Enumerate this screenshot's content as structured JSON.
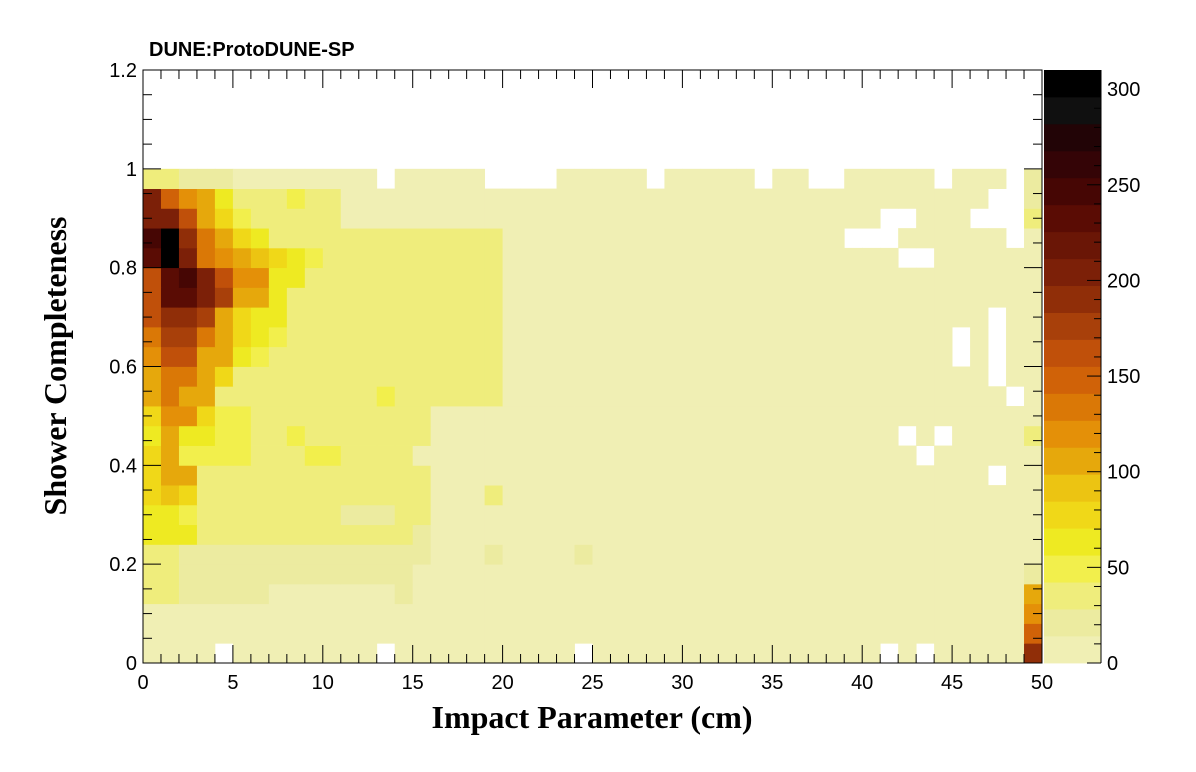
{
  "chart_data": {
    "type": "heatmap",
    "title": "DUNE:ProtoDUNE-SP",
    "xlabel": "Impact Parameter (cm)",
    "ylabel": "Shower Completeness",
    "xlim": [
      0,
      50
    ],
    "ylim": [
      0,
      1.2
    ],
    "x_bin_width": 1,
    "y_bin_width": 0.04,
    "x_ticks": [
      "0",
      "5",
      "10",
      "15",
      "20",
      "25",
      "30",
      "35",
      "40",
      "45",
      "50"
    ],
    "y_ticks": [
      "0",
      "0.2",
      "0.4",
      "0.6",
      "0.8",
      "1",
      "1.2"
    ],
    "colorbar": {
      "min": 0,
      "max": 310,
      "ticks": [
        "0",
        "50",
        "100",
        "150",
        "200",
        "250",
        "300"
      ],
      "palette": [
        "#f0efb4",
        "#eceba0",
        "#efed7c",
        "#f2ef4c",
        "#eeea22",
        "#f0d818",
        "#ecc412",
        "#e6a80c",
        "#e49008",
        "#da7806",
        "#d06208",
        "#c0500a",
        "#a8400a",
        "#902e08",
        "#7c2008",
        "#6a1606",
        "#5a0c04",
        "#460604",
        "#340406",
        "#220406",
        "#101010",
        "#000000"
      ]
    },
    "note_rows": "rows ordered from y=0 (bottom) upward; each row lists 50 counts for x bins 0..49; -1 = empty bin",
    "rows": [
      [
        2,
        2,
        2,
        2,
        -1,
        2,
        2,
        2,
        2,
        2,
        2,
        2,
        2,
        -1,
        2,
        2,
        2,
        2,
        2,
        2,
        2,
        2,
        2,
        2,
        -1,
        2,
        2,
        2,
        2,
        2,
        2,
        2,
        2,
        2,
        2,
        2,
        2,
        2,
        2,
        2,
        2,
        -1,
        2,
        -1,
        2,
        2,
        2,
        2,
        2,
        190
      ],
      [
        2,
        2,
        2,
        2,
        2,
        2,
        2,
        2,
        2,
        2,
        2,
        2,
        2,
        2,
        2,
        2,
        2,
        2,
        2,
        2,
        2,
        2,
        2,
        2,
        2,
        2,
        2,
        2,
        2,
        2,
        2,
        2,
        2,
        2,
        2,
        2,
        2,
        2,
        2,
        2,
        2,
        2,
        2,
        2,
        2,
        2,
        2,
        2,
        2,
        150
      ],
      [
        2,
        2,
        2,
        2,
        2,
        2,
        2,
        2,
        2,
        2,
        2,
        2,
        2,
        2,
        2,
        2,
        2,
        2,
        2,
        2,
        2,
        2,
        2,
        2,
        2,
        2,
        2,
        2,
        2,
        2,
        2,
        2,
        2,
        2,
        2,
        2,
        2,
        2,
        2,
        2,
        2,
        2,
        2,
        2,
        2,
        2,
        2,
        2,
        2,
        120
      ],
      [
        40,
        30,
        20,
        20,
        20,
        20,
        20,
        2,
        2,
        2,
        2,
        2,
        2,
        2,
        15,
        2,
        2,
        2,
        2,
        2,
        2,
        2,
        2,
        2,
        2,
        2,
        2,
        2,
        2,
        2,
        2,
        2,
        2,
        2,
        2,
        2,
        2,
        2,
        2,
        2,
        2,
        2,
        2,
        2,
        2,
        2,
        2,
        2,
        2,
        100
      ],
      [
        40,
        30,
        20,
        20,
        20,
        20,
        20,
        20,
        20,
        20,
        20,
        20,
        20,
        20,
        20,
        10,
        10,
        10,
        10,
        10,
        10,
        10,
        10,
        10,
        10,
        2,
        2,
        2,
        2,
        2,
        2,
        2,
        2,
        2,
        2,
        2,
        2,
        2,
        2,
        2,
        2,
        2,
        2,
        2,
        2,
        2,
        2,
        2,
        2,
        20
      ],
      [
        30,
        30,
        20,
        20,
        15,
        15,
        15,
        15,
        15,
        15,
        15,
        15,
        15,
        15,
        15,
        15,
        10,
        10,
        10,
        20,
        10,
        10,
        10,
        10,
        20,
        2,
        2,
        2,
        2,
        2,
        2,
        2,
        2,
        2,
        2,
        2,
        2,
        2,
        2,
        2,
        2,
        2,
        2,
        2,
        2,
        2,
        2,
        2,
        2,
        5
      ],
      [
        60,
        60,
        60,
        30,
        30,
        30,
        30,
        30,
        30,
        30,
        30,
        30,
        30,
        30,
        30,
        15,
        10,
        10,
        10,
        10,
        10,
        10,
        10,
        10,
        10,
        2,
        2,
        2,
        2,
        2,
        2,
        2,
        2,
        2,
        2,
        2,
        2,
        2,
        2,
        2,
        2,
        2,
        2,
        2,
        2,
        2,
        2,
        2,
        2,
        5
      ],
      [
        70,
        70,
        55,
        30,
        30,
        30,
        30,
        30,
        30,
        30,
        30,
        15,
        15,
        15,
        30,
        30,
        10,
        10,
        10,
        10,
        10,
        10,
        10,
        10,
        10,
        2,
        2,
        2,
        2,
        2,
        2,
        2,
        2,
        2,
        2,
        2,
        2,
        2,
        2,
        2,
        2,
        2,
        2,
        2,
        2,
        2,
        2,
        2,
        2,
        5
      ],
      [
        80,
        95,
        80,
        30,
        30,
        30,
        30,
        30,
        30,
        30,
        30,
        30,
        30,
        30,
        30,
        30,
        10,
        10,
        10,
        30,
        10,
        10,
        10,
        10,
        10,
        2,
        2,
        2,
        2,
        2,
        2,
        2,
        2,
        2,
        2,
        2,
        2,
        2,
        2,
        2,
        2,
        2,
        2,
        2,
        2,
        2,
        2,
        2,
        2,
        5
      ],
      [
        80,
        100,
        100,
        40,
        40,
        40,
        30,
        30,
        30,
        30,
        40,
        30,
        30,
        30,
        30,
        30,
        10,
        10,
        10,
        10,
        10,
        10,
        10,
        10,
        10,
        2,
        2,
        2,
        2,
        2,
        2,
        2,
        2,
        2,
        2,
        2,
        2,
        2,
        2,
        2,
        2,
        2,
        2,
        2,
        2,
        2,
        2,
        -1,
        2,
        5
      ],
      [
        80,
        100,
        55,
        55,
        55,
        55,
        40,
        40,
        40,
        55,
        55,
        30,
        30,
        30,
        30,
        10,
        10,
        10,
        10,
        10,
        10,
        10,
        10,
        10,
        10,
        2,
        2,
        2,
        2,
        2,
        2,
        2,
        2,
        2,
        2,
        2,
        2,
        2,
        2,
        2,
        2,
        2,
        2,
        -1,
        2,
        2,
        2,
        2,
        2,
        5
      ],
      [
        70,
        100,
        70,
        60,
        55,
        55,
        40,
        40,
        55,
        40,
        40,
        30,
        30,
        30,
        30,
        30,
        10,
        10,
        10,
        10,
        10,
        10,
        10,
        10,
        10,
        2,
        2,
        2,
        2,
        2,
        2,
        2,
        2,
        2,
        2,
        2,
        2,
        2,
        2,
        2,
        2,
        2,
        -1,
        2,
        -1,
        2,
        2,
        2,
        2,
        40
      ],
      [
        80,
        120,
        120,
        80,
        55,
        55,
        40,
        40,
        40,
        30,
        30,
        30,
        30,
        30,
        30,
        30,
        10,
        10,
        10,
        10,
        10,
        10,
        10,
        10,
        10,
        2,
        2,
        2,
        2,
        2,
        2,
        2,
        2,
        2,
        2,
        2,
        2,
        2,
        2,
        2,
        2,
        2,
        2,
        2,
        2,
        2,
        2,
        2,
        2,
        5
      ],
      [
        100,
        130,
        110,
        100,
        40,
        40,
        40,
        30,
        40,
        30,
        30,
        30,
        30,
        55,
        30,
        30,
        40,
        30,
        30,
        30,
        10,
        10,
        10,
        10,
        10,
        2,
        2,
        2,
        2,
        2,
        2,
        2,
        2,
        2,
        2,
        2,
        2,
        2,
        2,
        2,
        2,
        2,
        2,
        2,
        2,
        2,
        2,
        2,
        -1,
        5
      ],
      [
        110,
        140,
        140,
        100,
        80,
        40,
        40,
        40,
        40,
        30,
        30,
        30,
        30,
        30,
        30,
        30,
        30,
        30,
        30,
        30,
        10,
        10,
        10,
        10,
        10,
        2,
        2,
        2,
        2,
        2,
        2,
        2,
        2,
        2,
        2,
        2,
        2,
        2,
        2,
        2,
        2,
        2,
        2,
        2,
        2,
        2,
        2,
        -1,
        2,
        5
      ],
      [
        120,
        160,
        160,
        110,
        100,
        60,
        50,
        40,
        40,
        40,
        30,
        30,
        30,
        30,
        30,
        30,
        30,
        30,
        30,
        30,
        10,
        10,
        10,
        10,
        10,
        2,
        2,
        2,
        2,
        2,
        2,
        2,
        2,
        2,
        2,
        2,
        2,
        2,
        2,
        2,
        2,
        2,
        2,
        2,
        2,
        -1,
        2,
        -1,
        2,
        5
      ],
      [
        130,
        170,
        180,
        140,
        100,
        80,
        60,
        50,
        40,
        40,
        40,
        30,
        30,
        30,
        30,
        30,
        30,
        30,
        30,
        30,
        10,
        10,
        10,
        10,
        10,
        2,
        2,
        2,
        2,
        2,
        2,
        2,
        2,
        2,
        2,
        2,
        2,
        2,
        2,
        2,
        2,
        2,
        2,
        2,
        2,
        -1,
        2,
        -1,
        2,
        5
      ],
      [
        160,
        190,
        190,
        170,
        110,
        80,
        60,
        60,
        40,
        40,
        40,
        30,
        30,
        30,
        30,
        30,
        30,
        30,
        30,
        30,
        10,
        10,
        10,
        10,
        10,
        2,
        2,
        2,
        2,
        2,
        2,
        2,
        2,
        2,
        2,
        2,
        2,
        2,
        2,
        2,
        2,
        2,
        2,
        2,
        2,
        2,
        2,
        -1,
        2,
        5
      ],
      [
        160,
        230,
        230,
        210,
        180,
        110,
        110,
        60,
        40,
        30,
        30,
        30,
        30,
        30,
        30,
        30,
        30,
        30,
        30,
        30,
        10,
        10,
        10,
        10,
        10,
        2,
        2,
        2,
        2,
        2,
        2,
        2,
        2,
        2,
        2,
        2,
        2,
        2,
        2,
        2,
        2,
        2,
        2,
        2,
        2,
        2,
        2,
        2,
        2,
        5
      ],
      [
        160,
        230,
        250,
        200,
        160,
        120,
        120,
        60,
        60,
        30,
        30,
        30,
        30,
        30,
        30,
        30,
        30,
        30,
        30,
        30,
        10,
        10,
        10,
        10,
        10,
        2,
        2,
        2,
        2,
        2,
        2,
        2,
        2,
        2,
        2,
        2,
        2,
        2,
        2,
        2,
        2,
        2,
        2,
        2,
        2,
        2,
        2,
        2,
        2,
        5
      ],
      [
        230,
        310,
        200,
        140,
        120,
        110,
        90,
        80,
        60,
        50,
        40,
        40,
        40,
        40,
        40,
        40,
        30,
        30,
        30,
        30,
        10,
        10,
        10,
        10,
        10,
        2,
        2,
        2,
        2,
        2,
        2,
        2,
        2,
        2,
        2,
        2,
        2,
        2,
        2,
        2,
        2,
        2,
        -1,
        -1,
        2,
        2,
        2,
        2,
        2,
        5
      ],
      [
        240,
        310,
        190,
        140,
        110,
        80,
        60,
        40,
        40,
        40,
        40,
        30,
        30,
        30,
        30,
        30,
        30,
        30,
        30,
        30,
        10,
        10,
        10,
        10,
        10,
        2,
        2,
        2,
        2,
        2,
        2,
        2,
        2,
        2,
        2,
        2,
        2,
        2,
        2,
        -1,
        -1,
        -1,
        2,
        2,
        2,
        2,
        2,
        2,
        -1,
        5
      ],
      [
        200,
        210,
        160,
        110,
        80,
        50,
        40,
        40,
        40,
        30,
        30,
        10,
        10,
        10,
        10,
        10,
        10,
        10,
        10,
        10,
        10,
        10,
        10,
        10,
        10,
        2,
        2,
        2,
        2,
        2,
        2,
        2,
        2,
        2,
        2,
        2,
        2,
        2,
        2,
        2,
        2,
        -1,
        -1,
        2,
        2,
        2,
        -1,
        -1,
        -1,
        40
      ],
      [
        200,
        150,
        120,
        100,
        60,
        40,
        40,
        40,
        50,
        40,
        40,
        10,
        10,
        10,
        10,
        10,
        10,
        10,
        10,
        10,
        10,
        10,
        10,
        10,
        10,
        2,
        2,
        2,
        2,
        2,
        2,
        2,
        2,
        2,
        2,
        2,
        2,
        2,
        2,
        2,
        2,
        2,
        2,
        2,
        2,
        2,
        2,
        -1,
        -1,
        20
      ],
      [
        30,
        30,
        20,
        20,
        15,
        5,
        5,
        5,
        5,
        5,
        5,
        5,
        5,
        -1,
        5,
        5,
        5,
        5,
        5,
        -1,
        -1,
        -1,
        -1,
        5,
        5,
        5,
        5,
        5,
        -1,
        5,
        5,
        5,
        5,
        5,
        -1,
        5,
        5,
        -1,
        -1,
        5,
        5,
        5,
        5,
        5,
        -1,
        5,
        5,
        5,
        -1,
        20
      ]
    ]
  }
}
